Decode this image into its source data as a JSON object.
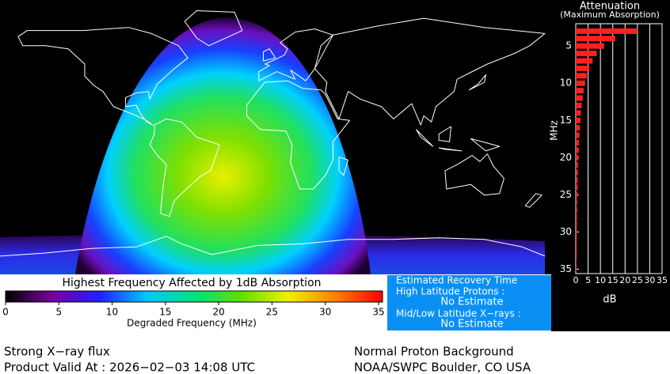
{
  "map": {
    "colorbar": {
      "title": "Highest Frequency Affected by 1dB Absorption",
      "label": "Degraded Frequency (MHz)",
      "lim": [
        0,
        35
      ],
      "ticks": [
        0,
        5,
        10,
        15,
        20,
        25,
        30,
        35
      ],
      "colors": [
        "#000000",
        "#7a00a0",
        "#2020ff",
        "#00c8ff",
        "#00e080",
        "#60e000",
        "#f0f000",
        "#ff8000",
        "#ff0000"
      ]
    }
  },
  "chart_data": {
    "type": "bar",
    "orientation": "horizontal",
    "title": "Attenuation",
    "subtitle": "(Maximum Absorption)",
    "xlabel": "dB",
    "ylabel": "MHz",
    "color": "#ff2020",
    "y": [
      3,
      4,
      5,
      6,
      7,
      8,
      9,
      10,
      11,
      12,
      13,
      14,
      15,
      16,
      17,
      18,
      19,
      20,
      21,
      22,
      23,
      24,
      25,
      26,
      27,
      28,
      29,
      30,
      31,
      32,
      33,
      34,
      35
    ],
    "values": [
      25,
      16,
      11.5,
      8.5,
      6.8,
      5.5,
      4.5,
      3.8,
      3.2,
      2.8,
      2.4,
      2.1,
      1.9,
      1.7,
      1.5,
      1.3,
      1.2,
      1.1,
      1.0,
      0.9,
      0.8,
      0.8,
      0.7,
      0.6,
      0.6,
      0.5,
      0.5,
      0.5,
      0.4,
      0.4,
      0.4,
      0.3,
      0.3
    ],
    "xlim": [
      0,
      35
    ],
    "xticks": [
      0,
      5,
      10,
      15,
      20,
      25,
      30,
      35
    ],
    "ylim": [
      2,
      35.6
    ],
    "yticks": [
      5,
      10,
      15,
      20,
      25,
      30,
      35
    ],
    "grid": true
  },
  "recovery": {
    "title": "Estimated Recovery Time",
    "rows": [
      {
        "label": "High Latitude Protons :",
        "value": "No Estimate"
      },
      {
        "label": "Mid/Low Latitude X−rays :",
        "value": "No Estimate"
      }
    ]
  },
  "footer": {
    "left": [
      "Strong X−ray flux",
      "Product Valid At : 2026−02−03 14:08 UTC"
    ],
    "right": [
      "Normal Proton Background",
      "NOAA/SWPC Boulder, CO USA"
    ]
  }
}
